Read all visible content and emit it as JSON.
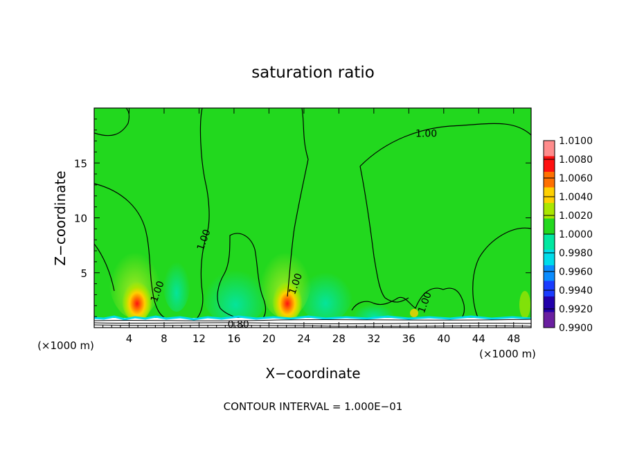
{
  "chart_data": {
    "type": "heatmap",
    "title": "saturation ratio",
    "xlabel": "X−coordinate",
    "ylabel": "Z−coordinate",
    "x_unit_label": "(×1000 m)",
    "x_unit_label_right": "(×1000 m)",
    "footer": "CONTOUR INTERVAL = 1.000E−01",
    "xlim": [
      0,
      50
    ],
    "ylim": [
      0,
      20
    ],
    "x_ticks": [
      4,
      8,
      12,
      16,
      20,
      24,
      28,
      32,
      36,
      40,
      44,
      48
    ],
    "y_ticks": [
      5,
      10,
      15
    ],
    "x_tick_labels": [
      "4",
      "8",
      "12",
      "16",
      "20",
      "24",
      "28",
      "32",
      "36",
      "40",
      "44",
      "48"
    ],
    "y_tick_labels": [
      "5",
      "10",
      "15"
    ],
    "colorbar": {
      "levels": [
        "0.9900",
        "0.9920",
        "0.9940",
        "0.9960",
        "0.9980",
        "1.0000",
        "1.0020",
        "1.0040",
        "1.0060",
        "1.0080",
        "1.0100"
      ],
      "colors": [
        "#6a1fa0",
        "#2200aa",
        "#1a3cff",
        "#0a8cff",
        "#00dcea",
        "#00e8a0",
        "#22d81e",
        "#aae600",
        "#ffd000",
        "#ff7000",
        "#ff1010",
        "#ff8c8c"
      ]
    },
    "background_value": "1.0000",
    "warm_plumes": [
      {
        "x": 5,
        "z": 2,
        "peak": "1.0080"
      },
      {
        "x": 22,
        "z": 2,
        "peak": "1.0080"
      }
    ],
    "contour_labels": [
      {
        "text": "1.00",
        "x": 38,
        "z": 17.7
      },
      {
        "text": "1.00",
        "x": 12.5,
        "z": 8
      },
      {
        "text": "1.00",
        "x": 7.2,
        "z": 3.3
      },
      {
        "text": "1.00",
        "x": 23,
        "z": 4
      },
      {
        "text": "1.00",
        "x": 37.8,
        "z": 2.3
      },
      {
        "text": "0.80",
        "x": 16.5,
        "z": 0.3
      }
    ]
  }
}
